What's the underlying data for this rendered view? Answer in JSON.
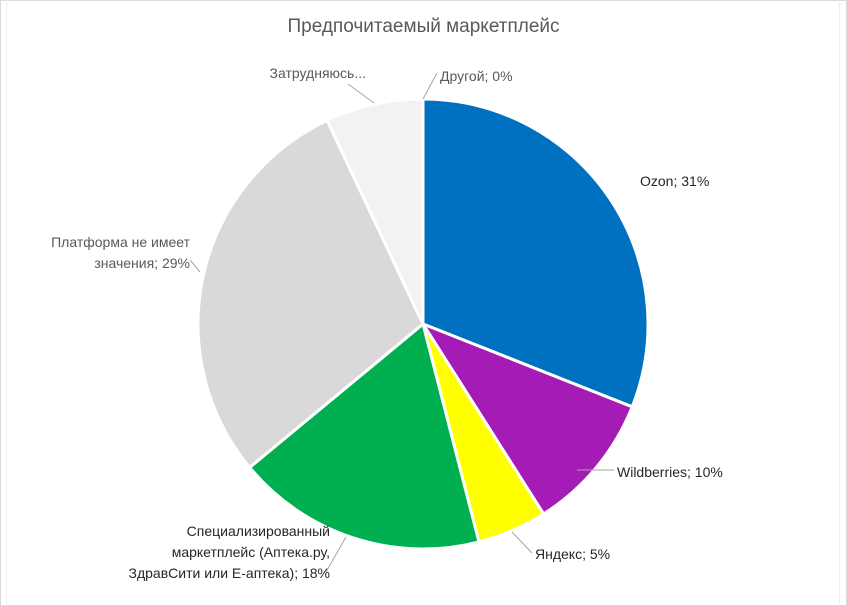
{
  "chart_data": {
    "type": "pie",
    "title": "Предпочитаемый маркетплейс",
    "slices": [
      {
        "name": "Ozon",
        "value": 31,
        "color": "#0070c0",
        "label_lines": [
          "Ozon; 31%"
        ]
      },
      {
        "name": "Wildberries",
        "value": 10,
        "color": "#a51bb5",
        "label_lines": [
          "Wildberries; 10%"
        ]
      },
      {
        "name": "Яндекс",
        "value": 5,
        "color": "#ffff00",
        "label_lines": [
          "Яндекс; 5%"
        ]
      },
      {
        "name": "Специализированный маркетплейс (Аптека.ру, ЗдравСити или Е-аптека)",
        "value": 18,
        "color": "#00b050",
        "label_lines": [
          "Специализированный",
          "маркетплейс (Аптека.ру,",
          "ЗдравСити или Е-аптека); 18%"
        ]
      },
      {
        "name": "Платформа не имеет значения",
        "value": 29,
        "color": "#d9d9d9",
        "label_lines": [
          "Платформа не имеет",
          "значения; 29%"
        ]
      },
      {
        "name": "Затрудняюсь...",
        "value": 7,
        "color": "#f2f2f2",
        "label_lines": [
          "Затрудняюсь..."
        ]
      },
      {
        "name": "Другой",
        "value": 0,
        "color": "#bfbfbf",
        "label_lines": [
          "Другой; 0%"
        ]
      }
    ],
    "legend": "none"
  }
}
